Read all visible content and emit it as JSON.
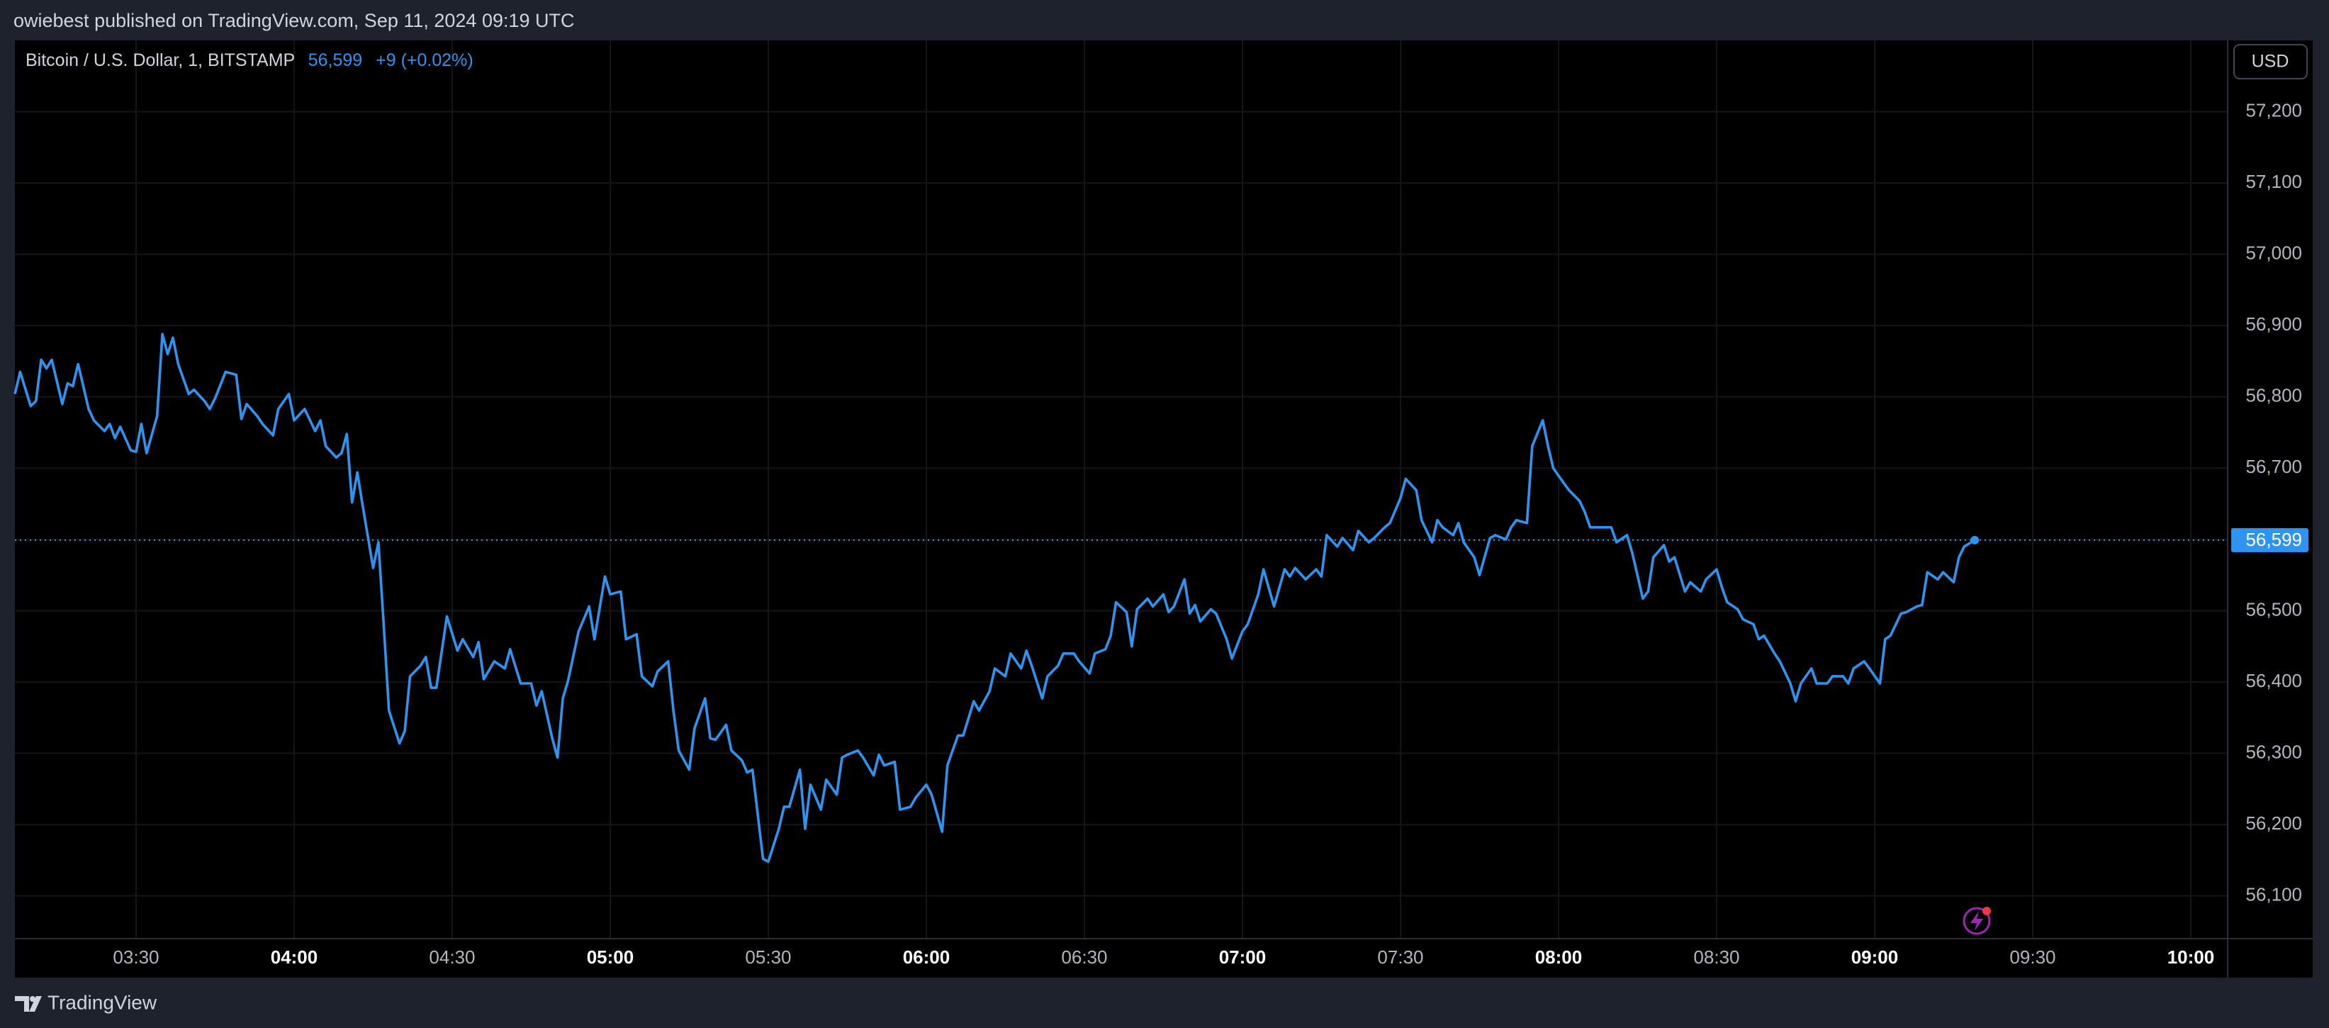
{
  "header": {
    "text": "owiebest published on TradingView.com, Sep 11, 2024 09:19 UTC"
  },
  "footer": {
    "brand": "TradingView"
  },
  "chart_data": {
    "type": "line",
    "title": "Bitcoin / U.S. Dollar, 1, BITSTAMP",
    "last_price_label": "56,599",
    "change_label": "+9 (+0.02%)",
    "currency_button": "USD",
    "color": "#2f94f0",
    "grid": true,
    "x": [
      "03:07",
      "03:08",
      "03:10",
      "03:11",
      "03:12",
      "03:13",
      "03:14",
      "03:16",
      "03:17",
      "03:18",
      "03:19",
      "03:21",
      "03:22",
      "03:24",
      "03:25",
      "03:26",
      "03:27",
      "03:29",
      "03:30",
      "03:31",
      "03:32",
      "03:34",
      "03:35",
      "03:36",
      "03:37",
      "03:38",
      "03:40",
      "03:41",
      "03:43",
      "03:44",
      "03:45",
      "03:47",
      "03:49",
      "03:50",
      "03:51",
      "03:53",
      "03:54",
      "03:56",
      "03:57",
      "03:59",
      "04:00",
      "04:02",
      "04:04",
      "04:05",
      "04:06",
      "04:08",
      "04:09",
      "04:10",
      "04:11",
      "04:12",
      "04:13",
      "04:15",
      "04:16",
      "04:17",
      "04:18",
      "04:20",
      "04:21",
      "04:22",
      "04:24",
      "04:25",
      "04:26",
      "04:27",
      "04:29",
      "04:31",
      "04:32",
      "04:34",
      "04:35",
      "04:36",
      "04:38",
      "04:40",
      "04:41",
      "04:43",
      "04:45",
      "04:46",
      "04:47",
      "04:49",
      "04:50",
      "04:51",
      "04:52",
      "04:54",
      "04:56",
      "04:57",
      "04:59",
      "05:00",
      "05:02",
      "05:03",
      "05:05",
      "05:06",
      "05:08",
      "05:09",
      "05:11",
      "05:12",
      "05:13",
      "05:15",
      "05:16",
      "05:18",
      "05:19",
      "05:20",
      "05:22",
      "05:23",
      "05:25",
      "05:26",
      "05:27",
      "05:29",
      "05:30",
      "05:32",
      "05:33",
      "05:34",
      "05:36",
      "05:37",
      "05:38",
      "05:40",
      "05:41",
      "05:43",
      "05:44",
      "05:45",
      "05:47",
      "05:48",
      "05:50",
      "05:51",
      "05:52",
      "05:54",
      "05:55",
      "05:57",
      "05:58",
      "06:00",
      "06:01",
      "06:03",
      "06:04",
      "06:06",
      "06:07",
      "06:09",
      "06:10",
      "06:12",
      "06:13",
      "06:15",
      "06:16",
      "06:18",
      "06:19",
      "06:20",
      "06:22",
      "06:23",
      "06:25",
      "06:26",
      "06:28",
      "06:29",
      "06:31",
      "06:32",
      "06:34",
      "06:35",
      "06:36",
      "06:38",
      "06:39",
      "06:40",
      "06:42",
      "06:43",
      "06:45",
      "06:46",
      "06:47",
      "06:49",
      "06:50",
      "06:51",
      "06:52",
      "06:54",
      "06:55",
      "06:57",
      "06:58",
      "07:00",
      "07:01",
      "07:03",
      "07:04",
      "07:06",
      "07:08",
      "07:09",
      "07:10",
      "07:12",
      "07:14",
      "07:15",
      "07:16",
      "07:18",
      "07:19",
      "07:21",
      "07:22",
      "07:24",
      "07:25",
      "07:27",
      "07:28",
      "07:30",
      "07:31",
      "07:33",
      "07:34",
      "07:36",
      "07:37",
      "07:38",
      "07:40",
      "07:41",
      "07:42",
      "07:44",
      "07:45",
      "07:47",
      "07:48",
      "07:50",
      "07:51",
      "07:52",
      "07:54",
      "07:55",
      "07:57",
      "07:58",
      "07:59",
      "08:01",
      "08:02",
      "08:04",
      "08:05",
      "08:06",
      "08:08",
      "08:10",
      "08:11",
      "08:13",
      "08:14",
      "08:16",
      "08:17",
      "08:18",
      "08:20",
      "08:21",
      "08:22",
      "08:24",
      "08:25",
      "08:27",
      "08:28",
      "08:30",
      "08:31",
      "08:32",
      "08:34",
      "08:35",
      "08:37",
      "08:38",
      "08:39",
      "08:41",
      "08:42",
      "08:44",
      "08:45",
      "08:46",
      "08:48",
      "08:49",
      "08:51",
      "08:52",
      "08:54",
      "08:55",
      "08:56",
      "08:58",
      "08:59",
      "09:01",
      "09:02",
      "09:03",
      "09:05",
      "09:06",
      "09:08",
      "09:09",
      "09:10",
      "09:12",
      "09:13",
      "09:15",
      "09:16",
      "09:17",
      "09:19"
    ],
    "values": [
      56804,
      56835,
      56787,
      56794,
      56852,
      56840,
      56852,
      56790,
      56819,
      56815,
      56846,
      56783,
      56767,
      56752,
      56762,
      56742,
      56758,
      56725,
      56723,
      56762,
      56721,
      56773,
      56888,
      56860,
      56883,
      56846,
      56804,
      56810,
      56794,
      56783,
      56798,
      56835,
      56831,
      56769,
      56790,
      56773,
      56762,
      56746,
      56783,
      56804,
      56767,
      56783,
      56752,
      56767,
      56731,
      56715,
      56721,
      56748,
      56652,
      56694,
      56648,
      56560,
      56596,
      56481,
      56360,
      56314,
      56331,
      56408,
      56423,
      56435,
      56392,
      56392,
      56492,
      56444,
      56460,
      56435,
      56456,
      56404,
      56429,
      56419,
      56446,
      56398,
      56398,
      56367,
      56387,
      56321,
      56294,
      56377,
      56402,
      56471,
      56506,
      56460,
      56548,
      56523,
      56527,
      56460,
      56467,
      56408,
      56394,
      56415,
      56429,
      56360,
      56304,
      56277,
      56335,
      56377,
      56321,
      56319,
      56340,
      56304,
      56290,
      56273,
      56277,
      56152,
      56148,
      56194,
      56225,
      56225,
      56277,
      56194,
      56256,
      56221,
      56263,
      56242,
      56294,
      56298,
      56304,
      56294,
      56269,
      56298,
      56283,
      56288,
      56221,
      56225,
      56238,
      56256,
      56242,
      56190,
      56283,
      56325,
      56325,
      56373,
      56360,
      56387,
      56419,
      56408,
      56440,
      56419,
      56444,
      56423,
      56377,
      56408,
      56423,
      56440,
      56440,
      56429,
      56412,
      56440,
      56446,
      56465,
      56512,
      56498,
      56450,
      56502,
      56517,
      56506,
      56523,
      56498,
      56506,
      56544,
      56496,
      56508,
      56485,
      56502,
      56496,
      56460,
      56433,
      56471,
      56481,
      56523,
      56558,
      56506,
      56558,
      56548,
      56560,
      56544,
      56558,
      56548,
      56606,
      56590,
      56602,
      56585,
      56612,
      56596,
      56602,
      56617,
      56623,
      56658,
      56685,
      56669,
      56627,
      56596,
      56627,
      56617,
      56606,
      56623,
      56596,
      56575,
      56550,
      56602,
      56606,
      56600,
      56617,
      56627,
      56623,
      56731,
      56767,
      56731,
      56700,
      56679,
      56669,
      56654,
      56638,
      56617,
      56617,
      56617,
      56596,
      56606,
      56581,
      56517,
      56527,
      56575,
      56592,
      56569,
      56575,
      56527,
      56540,
      56527,
      56544,
      56558,
      56533,
      56512,
      56502,
      56488,
      56481,
      56460,
      56465,
      56440,
      56429,
      56398,
      56373,
      56398,
      56419,
      56398,
      56398,
      56408,
      56408,
      56398,
      56419,
      56429,
      56419,
      56398,
      56460,
      56465,
      56496,
      56498,
      56506,
      56508,
      56554,
      56544,
      56554,
      56540,
      56575,
      56590,
      56599
    ],
    "xlim": [
      "03:07",
      "10:07"
    ],
    "xticks": [
      "03:30",
      "04:00",
      "04:30",
      "05:00",
      "05:30",
      "06:00",
      "06:30",
      "07:00",
      "07:30",
      "08:00",
      "08:30",
      "09:00",
      "09:30",
      "10:00"
    ],
    "ylim": [
      56040,
      57300
    ],
    "yticks": [
      {
        "value": 56100,
        "label": "56,100"
      },
      {
        "value": 56200,
        "label": "56,200"
      },
      {
        "value": 56300,
        "label": "56,300"
      },
      {
        "value": 56400,
        "label": "56,400"
      },
      {
        "value": 56500,
        "label": "56,500"
      },
      {
        "value": 56600,
        "label": "56,600"
      },
      {
        "value": 56700,
        "label": "56,700"
      },
      {
        "value": 56800,
        "label": "56,800"
      },
      {
        "value": 56900,
        "label": "56,900"
      },
      {
        "value": 57000,
        "label": "57,000"
      },
      {
        "value": 57100,
        "label": "57,100"
      },
      {
        "value": 57200,
        "label": "57,200"
      }
    ]
  }
}
